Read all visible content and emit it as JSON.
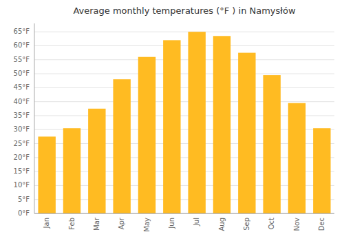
{
  "chart_data": {
    "type": "bar",
    "title": "Average monthly temperatures (°F ) in Namysłów",
    "categories": [
      "Jan",
      "Feb",
      "Mar",
      "Apr",
      "May",
      "Jun",
      "Jul",
      "Aug",
      "Sep",
      "Oct",
      "Nov",
      "Dec"
    ],
    "values": [
      27.5,
      30.5,
      37.5,
      48.0,
      56.0,
      62.0,
      65.0,
      63.5,
      57.5,
      49.5,
      39.5,
      30.5
    ],
    "color": "#FFBB22",
    "ylim": [
      0,
      68
    ],
    "yticks": [
      {
        "value": 0,
        "label": "0°F"
      },
      {
        "value": 5,
        "label": "5°F"
      },
      {
        "value": 10,
        "label": "10°F"
      },
      {
        "value": 15,
        "label": "15°F"
      },
      {
        "value": 20,
        "label": "20°F"
      },
      {
        "value": 25,
        "label": "25°F"
      },
      {
        "value": 30,
        "label": "30°F"
      },
      {
        "value": 35,
        "label": "35°F"
      },
      {
        "value": 40,
        "label": "40°F"
      },
      {
        "value": 45,
        "label": "45°F"
      },
      {
        "value": 50,
        "label": "50°F"
      },
      {
        "value": 55,
        "label": "55°F"
      },
      {
        "value": 60,
        "label": "60°F"
      },
      {
        "value": 65,
        "label": "65°F"
      }
    ],
    "grid": true
  }
}
